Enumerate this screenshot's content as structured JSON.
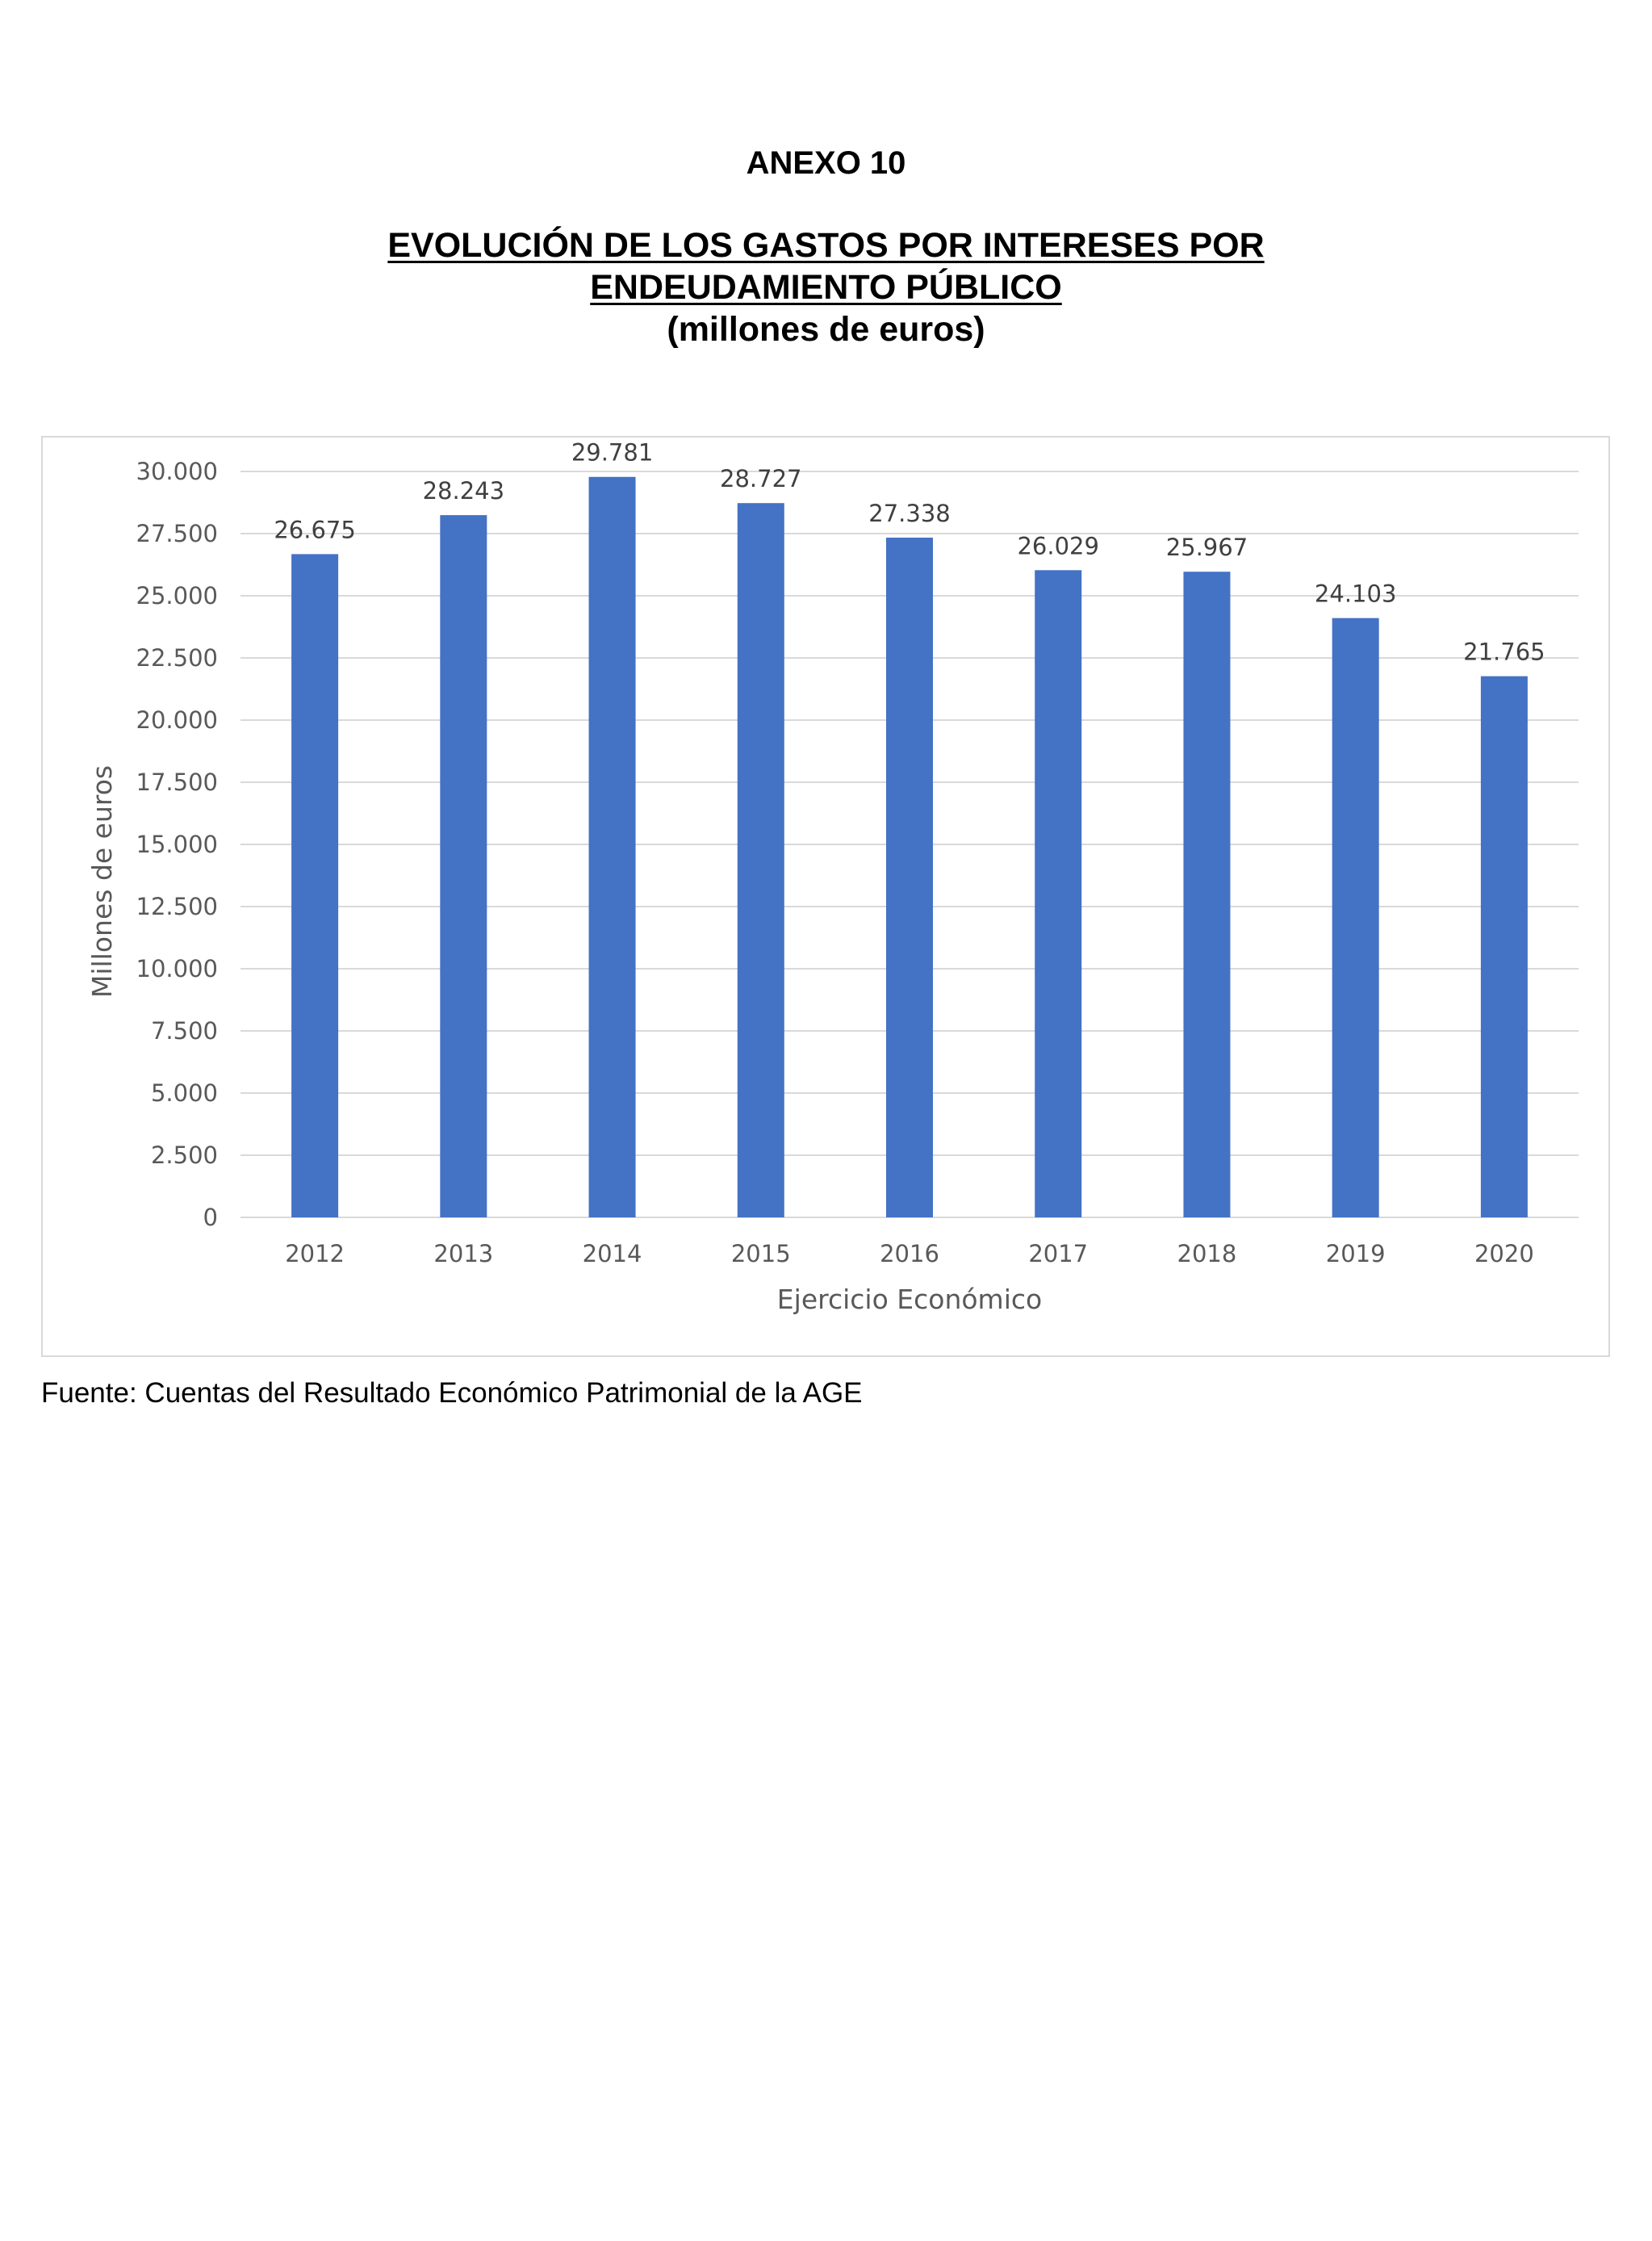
{
  "header": {
    "annex": "ANEXO 10",
    "title_line1": "EVOLUCIÓN DE LOS GASTOS POR INTERESES POR",
    "title_line2": "ENDEUDAMIENTO PÚBLICO",
    "subtitle": "(millones de euros)"
  },
  "footer": {
    "source": "Fuente: Cuentas del Resultado Económico Patrimonial de la AGE"
  },
  "chart_data": {
    "type": "bar",
    "categories": [
      "2012",
      "2013",
      "2014",
      "2015",
      "2016",
      "2017",
      "2018",
      "2019",
      "2020"
    ],
    "values": [
      26675,
      28243,
      29781,
      28727,
      27338,
      26029,
      25967,
      24103,
      21765
    ],
    "value_labels": [
      "26.675",
      "28.243",
      "29.781",
      "28.727",
      "27.338",
      "26.029",
      "25.967",
      "24.103",
      "21.765"
    ],
    "xlabel": "Ejercicio Económico",
    "ylabel": "Millones de euros",
    "ylim": [
      0,
      30000
    ],
    "yticks": [
      0,
      2500,
      5000,
      7500,
      10000,
      12500,
      15000,
      17500,
      20000,
      22500,
      25000,
      27500,
      30000
    ],
    "ytick_labels": [
      "0",
      "2.500",
      "5.000",
      "7.500",
      "10.000",
      "12.500",
      "15.000",
      "17.500",
      "20.000",
      "22.500",
      "25.000",
      "27.500",
      "30.000"
    ],
    "grid": true,
    "legend": "none",
    "colors": {
      "bar": "#4472c4",
      "grid": "#d9d9d9",
      "text": "#595959"
    }
  }
}
